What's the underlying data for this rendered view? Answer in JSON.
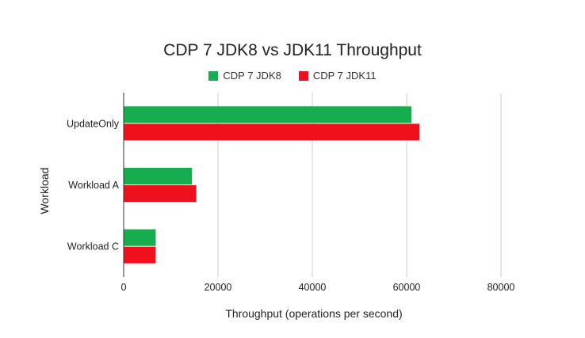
{
  "chart_data": {
    "type": "bar",
    "orientation": "horizontal",
    "title": "CDP 7 JDK8 vs JDK11 Throughput",
    "xlabel": "Throughput (operations per second)",
    "ylabel": "Workload",
    "categories": [
      "UpdateOnly",
      "Workload A",
      "Workload C"
    ],
    "series": [
      {
        "name": "CDP 7 JDK8",
        "color": "#17ad4f",
        "values": [
          61000,
          14500,
          6800
        ]
      },
      {
        "name": "CDP 7 JDK11",
        "color": "#f0101c",
        "values": [
          62700,
          15400,
          6800
        ]
      }
    ],
    "xlim": [
      0,
      80000
    ],
    "xticks": [
      0,
      20000,
      40000,
      60000,
      80000
    ],
    "grid": true,
    "legend_position": "top"
  }
}
